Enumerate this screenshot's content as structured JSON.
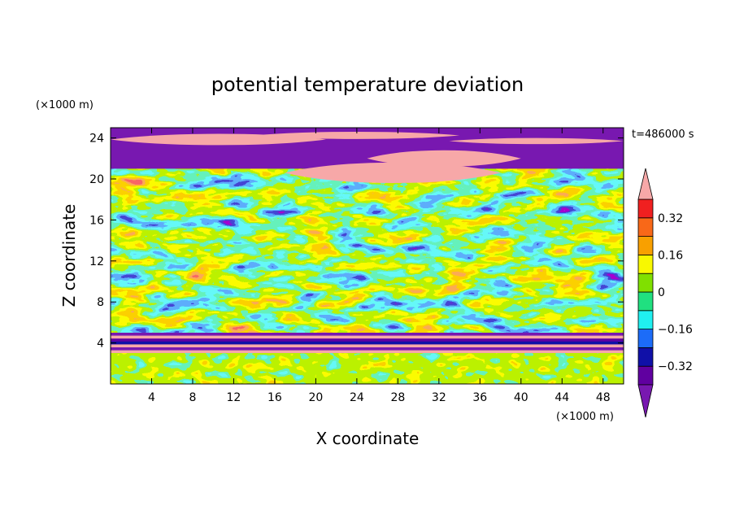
{
  "chart_data": {
    "type": "heatmap",
    "title": "potential temperature deviation",
    "time_label": "t=486000 s",
    "xlabel": "X coordinate",
    "ylabel": "Z coordinate",
    "x_unit": "(×1000 m)",
    "y_unit": "(×1000 m)",
    "xlim": [
      0,
      50
    ],
    "ylim": [
      0,
      25
    ],
    "x_ticks": [
      4,
      8,
      12,
      16,
      20,
      24,
      28,
      32,
      36,
      40,
      44,
      48
    ],
    "y_ticks": [
      4,
      8,
      12,
      16,
      20,
      24
    ],
    "colorbar": {
      "levels": [
        -0.4,
        -0.32,
        -0.24,
        -0.16,
        -0.08,
        0,
        0.08,
        0.16,
        0.24,
        0.32,
        0.4
      ],
      "tick_labels": [
        "0.32",
        "0.16",
        "0",
        "−0.16",
        "−0.32"
      ],
      "tick_values": [
        0.32,
        0.16,
        0,
        -0.16,
        -0.32
      ],
      "colors": [
        "#f7a8a8",
        "#f02020",
        "#f86818",
        "#f8a000",
        "#f8f800",
        "#80e000",
        "#20e080",
        "#20f0f0",
        "#1c6cf8",
        "#1010a8",
        "#6000a0",
        "#7818b0"
      ],
      "extend": "both"
    },
    "layers": [
      {
        "z_range": [
          0,
          3
        ],
        "description": "mixed green/cyan/yellow low-level cells"
      },
      {
        "z_range": [
          3,
          5
        ],
        "description": "thin alternating pink and purple strata"
      },
      {
        "z_range": [
          5,
          21
        ],
        "description": "turbulent mixed field, values −0.4 to 0.4"
      },
      {
        "z_range": [
          21,
          25
        ],
        "description": "broad pink and purple bands"
      }
    ]
  }
}
